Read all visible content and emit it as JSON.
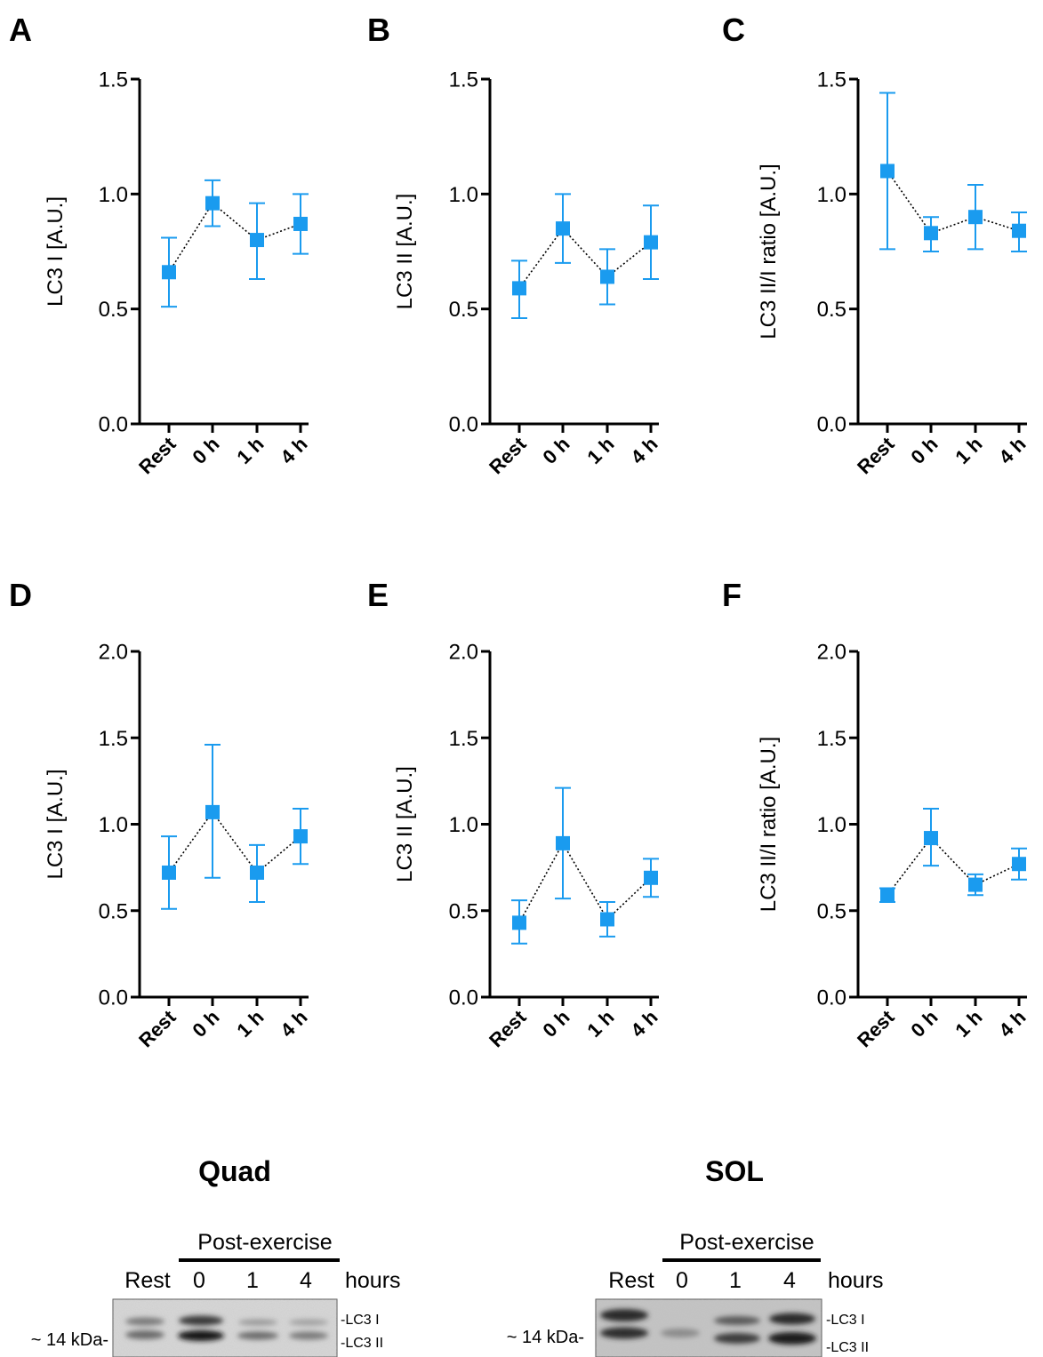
{
  "chart_data": [
    {
      "id": "A",
      "type": "line",
      "panel_label": "A",
      "ylabel": "LC3 I [A.U.]",
      "ylim": [
        0,
        1.5
      ],
      "yticks": [
        "0.0",
        "0.5",
        "1.0",
        "1.5"
      ],
      "categories": [
        "Rest",
        "0 h",
        "1 h",
        "4 h"
      ],
      "values": [
        0.66,
        0.96,
        0.8,
        0.87
      ],
      "err_low": [
        0.51,
        0.86,
        0.63,
        0.74
      ],
      "err_high": [
        0.81,
        1.06,
        0.96,
        1.0
      ]
    },
    {
      "id": "B",
      "type": "line",
      "panel_label": "B",
      "ylabel": "LC3 II [A.U.]",
      "ylim": [
        0,
        1.5
      ],
      "yticks": [
        "0.0",
        "0.5",
        "1.0",
        "1.5"
      ],
      "categories": [
        "Rest",
        "0 h",
        "1 h",
        "4 h"
      ],
      "values": [
        0.59,
        0.85,
        0.64,
        0.79
      ],
      "err_low": [
        0.46,
        0.7,
        0.52,
        0.63
      ],
      "err_high": [
        0.71,
        1.0,
        0.76,
        0.95
      ]
    },
    {
      "id": "C",
      "type": "line",
      "panel_label": "C",
      "ylabel": "LC3 II/I ratio [A.U.]",
      "ylim": [
        0,
        1.5
      ],
      "yticks": [
        "0.0",
        "0.5",
        "1.0",
        "1.5"
      ],
      "categories": [
        "Rest",
        "0 h",
        "1 h",
        "4 h"
      ],
      "values": [
        1.1,
        0.83,
        0.9,
        0.84
      ],
      "err_low": [
        0.76,
        0.75,
        0.76,
        0.75
      ],
      "err_high": [
        1.44,
        0.9,
        1.04,
        0.92
      ]
    },
    {
      "id": "D",
      "type": "line",
      "panel_label": "D",
      "ylabel": "LC3 I [A.U.]",
      "ylim": [
        0,
        2.0
      ],
      "yticks": [
        "0.0",
        "0.5",
        "1.0",
        "1.5",
        "2.0"
      ],
      "categories": [
        "Rest",
        "0 h",
        "1 h",
        "4 h"
      ],
      "values": [
        0.72,
        1.07,
        0.72,
        0.93
      ],
      "err_low": [
        0.51,
        0.69,
        0.55,
        0.77
      ],
      "err_high": [
        0.93,
        1.46,
        0.88,
        1.09
      ]
    },
    {
      "id": "E",
      "type": "line",
      "panel_label": "E",
      "ylabel": "LC3 II [A.U.]",
      "ylim": [
        0,
        2.0
      ],
      "yticks": [
        "0.0",
        "0.5",
        "1.0",
        "1.5",
        "2.0"
      ],
      "categories": [
        "Rest",
        "0 h",
        "1 h",
        "4 h"
      ],
      "values": [
        0.43,
        0.89,
        0.45,
        0.69
      ],
      "err_low": [
        0.31,
        0.57,
        0.35,
        0.58
      ],
      "err_high": [
        0.56,
        1.21,
        0.55,
        0.8
      ]
    },
    {
      "id": "F",
      "type": "line",
      "panel_label": "F",
      "ylabel": "LC3 II/I ratio [A.U.]",
      "ylim": [
        0,
        2.0
      ],
      "yticks": [
        "0.0",
        "0.5",
        "1.0",
        "1.5",
        "2.0"
      ],
      "categories": [
        "Rest",
        "0 h",
        "1 h",
        "4 h"
      ],
      "values": [
        0.59,
        0.92,
        0.65,
        0.77
      ],
      "err_low": [
        0.55,
        0.76,
        0.59,
        0.68
      ],
      "err_high": [
        0.63,
        1.09,
        0.71,
        0.86
      ]
    }
  ],
  "colors": {
    "marker": "#1a9bef",
    "axis": "#000000",
    "connector": "#000000"
  },
  "blots": [
    {
      "id": "quad",
      "title": "Quad",
      "header": "Post-exercise",
      "lanes": [
        "Rest",
        "0",
        "1",
        "4"
      ],
      "unit": "hours",
      "band_labels": [
        "-LC3 I",
        "-LC3 II"
      ],
      "marker": "~ 14 kDa-"
    },
    {
      "id": "sol",
      "title": "SOL",
      "header": "Post-exercise",
      "lanes": [
        "Rest",
        "0",
        "1",
        "4"
      ],
      "unit": "hours",
      "band_labels": [
        "-LC3 I",
        "-LC3 II"
      ],
      "marker": "~ 14 kDa-"
    }
  ]
}
